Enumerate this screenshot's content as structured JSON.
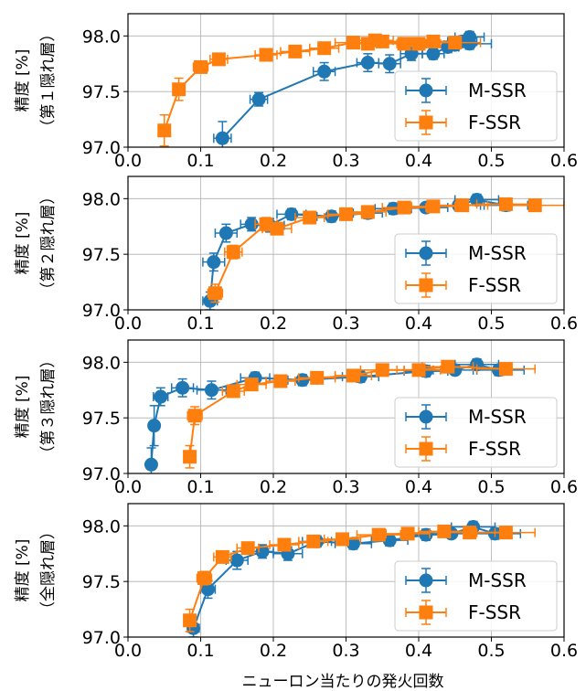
{
  "colors": {
    "m_ssr": "#1f77b4",
    "f_ssr": "#ff7f0e",
    "grid": "#b0b0b0"
  },
  "xlabel": "ニューロン当たりの発火回数",
  "chart_data": [
    {
      "type": "line",
      "ylabel_lines": [
        "精度 [%]",
        "（第１隠れ層）"
      ],
      "xlim": [
        0.0,
        0.6
      ],
      "ylim": [
        97.0,
        98.2
      ],
      "xticks": [
        "0.0",
        "0.1",
        "0.2",
        "0.3",
        "0.4",
        "0.5",
        "0.6"
      ],
      "yticks": [
        "97.0",
        "97.5",
        "98.0"
      ],
      "grid": true,
      "legend": "bottom-right",
      "series": [
        {
          "name": "M-SSR",
          "marker": "circle",
          "x": [
            0.13,
            0.18,
            0.27,
            0.33,
            0.36,
            0.39,
            0.42,
            0.44,
            0.45,
            0.46,
            0.47,
            0.47
          ],
          "y": [
            97.08,
            97.43,
            97.68,
            97.76,
            97.75,
            97.84,
            97.84,
            97.9,
            97.92,
            97.95,
            97.99,
            97.93
          ],
          "xerr": [
            0.012,
            0.012,
            0.015,
            0.015,
            0.015,
            0.015,
            0.015,
            0.015,
            0.015,
            0.02,
            0.02,
            0.03
          ],
          "yerr": [
            0.15,
            0.06,
            0.08,
            0.08,
            0.08,
            0.06,
            0.05,
            0.05,
            0.05,
            0.05,
            0.05,
            0.05
          ]
        },
        {
          "name": "F-SSR",
          "marker": "square",
          "x": [
            0.05,
            0.07,
            0.1,
            0.125,
            0.19,
            0.23,
            0.27,
            0.31,
            0.33,
            0.34,
            0.35,
            0.38,
            0.4,
            0.42,
            0.45
          ],
          "y": [
            97.15,
            97.52,
            97.72,
            97.79,
            97.83,
            97.86,
            97.89,
            97.94,
            97.93,
            97.96,
            97.95,
            97.93,
            97.93,
            97.95,
            97.94
          ],
          "xerr": [
            0.005,
            0.008,
            0.01,
            0.012,
            0.015,
            0.02,
            0.02,
            0.025,
            0.025,
            0.025,
            0.025,
            0.03,
            0.03,
            0.03,
            0.035
          ],
          "yerr": [
            0.14,
            0.1,
            0.05,
            0.05,
            0.03,
            0.03,
            0.05,
            0.05,
            0.04,
            0.04,
            0.04,
            0.03,
            0.03,
            0.03,
            0.03
          ]
        }
      ]
    },
    {
      "type": "line",
      "ylabel_lines": [
        "精度 [%]",
        "（第２隠れ層）"
      ],
      "xlim": [
        0.0,
        0.6
      ],
      "ylim": [
        97.0,
        98.2
      ],
      "xticks": [
        "0.0",
        "0.1",
        "0.2",
        "0.3",
        "0.4",
        "0.5",
        "0.6"
      ],
      "yticks": [
        "97.0",
        "97.5",
        "98.0"
      ],
      "grid": true,
      "legend": "bottom-right",
      "series": [
        {
          "name": "M-SSR",
          "marker": "circle",
          "x": [
            0.113,
            0.118,
            0.135,
            0.17,
            0.195,
            0.225,
            0.28,
            0.33,
            0.365,
            0.41,
            0.455,
            0.48,
            0.52
          ],
          "y": [
            97.08,
            97.43,
            97.69,
            97.77,
            97.76,
            97.86,
            97.84,
            97.87,
            97.91,
            97.92,
            97.94,
            97.99,
            97.94
          ],
          "xerr": [
            0.01,
            0.015,
            0.015,
            0.015,
            0.02,
            0.02,
            0.02,
            0.02,
            0.025,
            0.03,
            0.03,
            0.03,
            0.03
          ],
          "yerr": [
            0.08,
            0.08,
            0.08,
            0.06,
            0.06,
            0.05,
            0.05,
            0.05,
            0.05,
            0.04,
            0.05,
            0.05,
            0.05
          ]
        },
        {
          "name": "F-SSR",
          "marker": "square",
          "x": [
            0.12,
            0.145,
            0.19,
            0.205,
            0.25,
            0.3,
            0.33,
            0.38,
            0.42,
            0.46,
            0.52,
            0.56
          ],
          "y": [
            97.15,
            97.52,
            97.77,
            97.73,
            97.83,
            97.86,
            97.88,
            97.92,
            97.93,
            97.94,
            97.95,
            97.94
          ],
          "xerr": [
            0.01,
            0.012,
            0.015,
            0.02,
            0.02,
            0.025,
            0.025,
            0.03,
            0.03,
            0.035,
            0.04,
            0.04
          ],
          "yerr": [
            0.08,
            0.06,
            0.06,
            0.05,
            0.05,
            0.05,
            0.04,
            0.04,
            0.04,
            0.04,
            0.04,
            0.04
          ]
        }
      ]
    },
    {
      "type": "line",
      "ylabel_lines": [
        "精度 [%]",
        "（第３隠れ層）"
      ],
      "xlim": [
        0.0,
        0.6
      ],
      "ylim": [
        97.0,
        98.2
      ],
      "xticks": [
        "0.0",
        "0.1",
        "0.2",
        "0.3",
        "0.4",
        "0.5",
        "0.6"
      ],
      "yticks": [
        "97.0",
        "97.5",
        "98.0"
      ],
      "grid": true,
      "legend": "bottom-right",
      "series": [
        {
          "name": "M-SSR",
          "marker": "circle",
          "x": [
            0.032,
            0.036,
            0.045,
            0.075,
            0.115,
            0.175,
            0.24,
            0.32,
            0.41,
            0.45,
            0.48,
            0.51
          ],
          "y": [
            97.08,
            97.43,
            97.69,
            97.77,
            97.75,
            97.86,
            97.84,
            97.87,
            97.92,
            97.93,
            97.98,
            97.93
          ],
          "xerr": [
            0.005,
            0.005,
            0.01,
            0.015,
            0.02,
            0.02,
            0.02,
            0.025,
            0.03,
            0.03,
            0.03,
            0.035
          ],
          "yerr": [
            0.15,
            0.18,
            0.08,
            0.08,
            0.08,
            0.05,
            0.05,
            0.05,
            0.05,
            0.04,
            0.05,
            0.05
          ]
        },
        {
          "name": "F-SSR",
          "marker": "square",
          "x": [
            0.085,
            0.092,
            0.145,
            0.17,
            0.21,
            0.26,
            0.31,
            0.35,
            0.4,
            0.44,
            0.52
          ],
          "y": [
            97.15,
            97.52,
            97.74,
            97.8,
            97.83,
            97.86,
            97.88,
            97.93,
            97.93,
            97.96,
            97.94
          ],
          "xerr": [
            0.005,
            0.01,
            0.015,
            0.02,
            0.02,
            0.025,
            0.025,
            0.03,
            0.03,
            0.035,
            0.04
          ],
          "yerr": [
            0.1,
            0.08,
            0.05,
            0.05,
            0.05,
            0.05,
            0.05,
            0.04,
            0.04,
            0.04,
            0.04
          ]
        }
      ]
    },
    {
      "type": "line",
      "ylabel_lines": [
        "精度 [%]",
        "（全隠れ層）"
      ],
      "xlim": [
        0.0,
        0.6
      ],
      "ylim": [
        97.0,
        98.2
      ],
      "xticks": [
        "0.0",
        "0.1",
        "0.2",
        "0.3",
        "0.4",
        "0.5",
        "0.6"
      ],
      "yticks": [
        "97.0",
        "97.5",
        "98.0"
      ],
      "grid": true,
      "legend": "bottom-right",
      "series": [
        {
          "name": "M-SSR",
          "marker": "circle",
          "x": [
            0.09,
            0.11,
            0.15,
            0.185,
            0.22,
            0.26,
            0.31,
            0.36,
            0.41,
            0.445,
            0.475,
            0.505
          ],
          "y": [
            97.08,
            97.43,
            97.69,
            97.77,
            97.75,
            97.86,
            97.84,
            97.87,
            97.92,
            97.93,
            97.99,
            97.93
          ],
          "xerr": [
            0.008,
            0.01,
            0.015,
            0.015,
            0.02,
            0.02,
            0.025,
            0.025,
            0.03,
            0.03,
            0.03,
            0.035
          ],
          "yerr": [
            0.08,
            0.08,
            0.08,
            0.06,
            0.06,
            0.05,
            0.05,
            0.05,
            0.05,
            0.04,
            0.05,
            0.05
          ]
        },
        {
          "name": "F-SSR",
          "marker": "square",
          "x": [
            0.085,
            0.105,
            0.13,
            0.165,
            0.215,
            0.255,
            0.295,
            0.345,
            0.385,
            0.435,
            0.47,
            0.52
          ],
          "y": [
            97.15,
            97.53,
            97.72,
            97.8,
            97.83,
            97.86,
            97.88,
            97.92,
            97.93,
            97.95,
            97.94,
            97.94
          ],
          "xerr": [
            0.005,
            0.01,
            0.012,
            0.015,
            0.02,
            0.02,
            0.025,
            0.03,
            0.03,
            0.035,
            0.035,
            0.04
          ],
          "yerr": [
            0.1,
            0.06,
            0.05,
            0.05,
            0.05,
            0.05,
            0.05,
            0.04,
            0.04,
            0.04,
            0.04,
            0.04
          ]
        }
      ]
    }
  ]
}
